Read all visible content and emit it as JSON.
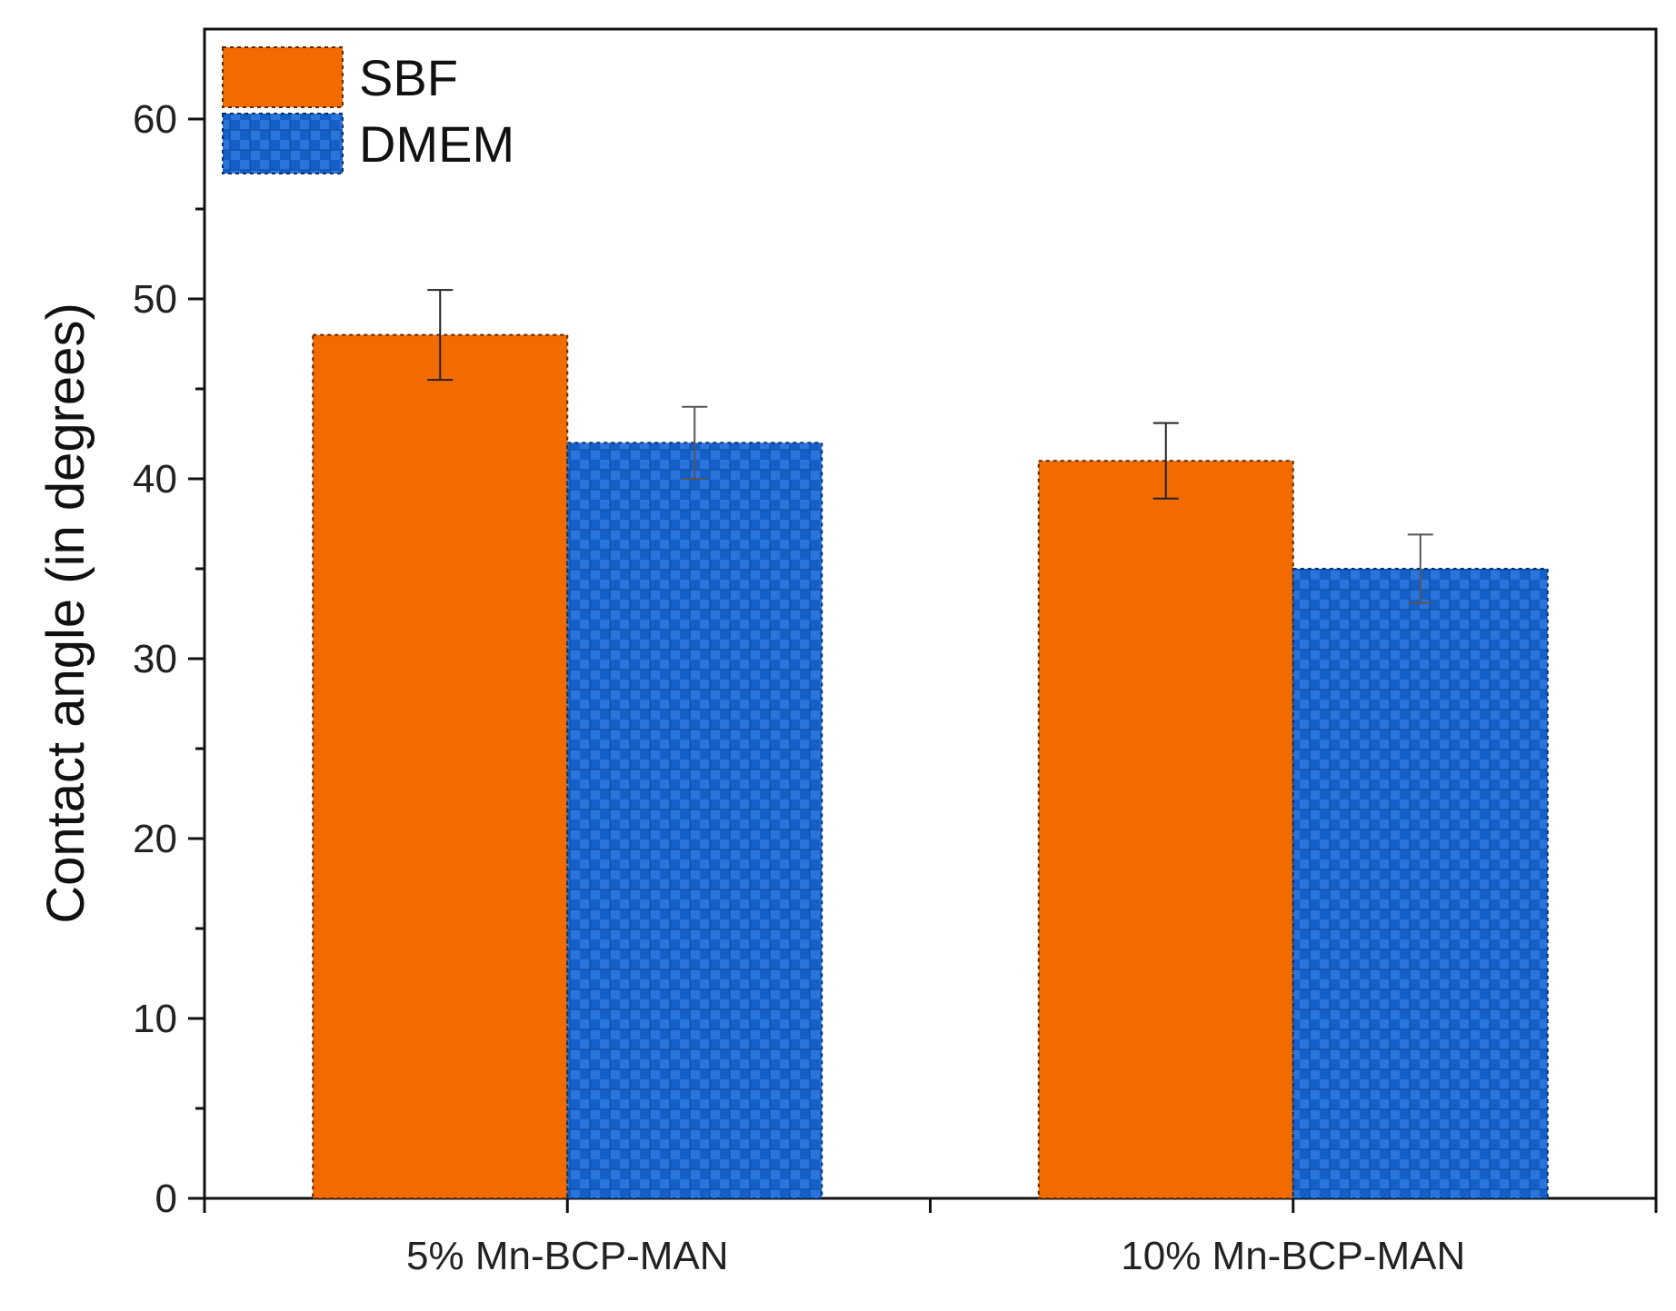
{
  "chart_data": {
    "type": "bar",
    "title": "",
    "xlabel": "",
    "ylabel": "Contact angle (in degrees)",
    "ylim": [
      0,
      65
    ],
    "yticks": [
      0,
      10,
      20,
      30,
      40,
      50,
      60
    ],
    "categories": [
      "5% Mn-BCP-MAN",
      "10% Mn-BCP-MAN"
    ],
    "series": [
      {
        "name": "SBF",
        "values": [
          48,
          41
        ],
        "errors": [
          2.5,
          2.1
        ],
        "color": "#f26b00",
        "pattern": "solid"
      },
      {
        "name": "DMEM",
        "values": [
          42,
          35
        ],
        "errors": [
          2.0,
          1.9
        ],
        "color": "#1560c8",
        "pattern": "checkered"
      }
    ],
    "legend_position": "top-left",
    "grid": false
  }
}
